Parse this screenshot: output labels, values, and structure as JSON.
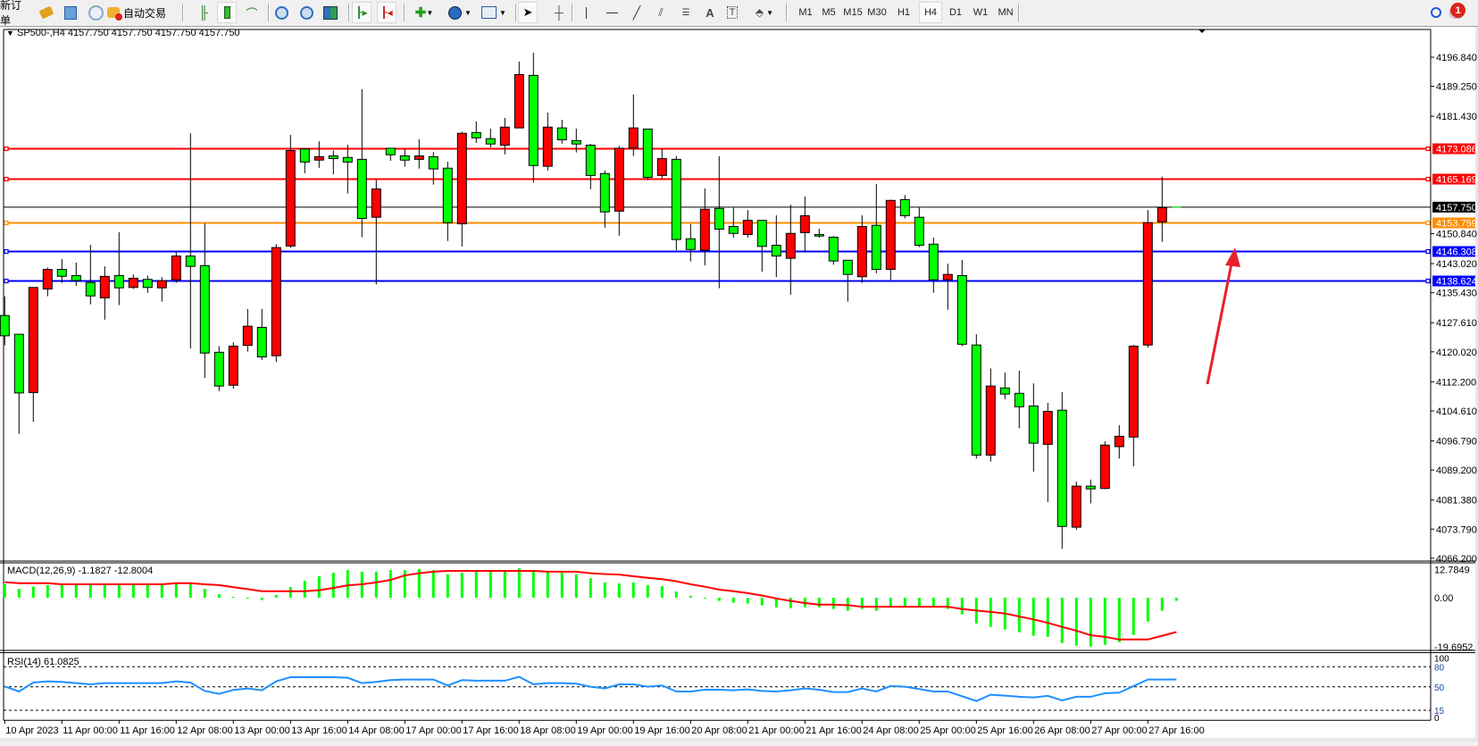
{
  "toolbar": {
    "new_order_label": "新订单",
    "auto_trading_label": "自动交易",
    "timeframes": [
      "M1",
      "M5",
      "M15",
      "M30",
      "H1",
      "H4",
      "D1",
      "W1",
      "MN"
    ],
    "active_timeframe": "H4",
    "notification_count": "1",
    "icons": [
      "new-order",
      "market-watch-icon",
      "navigator-icon",
      "signals-icon",
      "auto-trading-icon",
      "bar-chart-icon",
      "candlestick-icon",
      "line-chart-icon",
      "zoom-in-icon",
      "zoom-out-icon",
      "tile-windows-icon",
      "auto-scroll-icon",
      "chart-shift-icon",
      "add-indicator-icon",
      "periods-icon",
      "templates-icon",
      "cursor-icon",
      "crosshair-icon",
      "vertical-line-icon",
      "horizontal-line-icon",
      "trendline-icon",
      "equidistant-channel-icon",
      "fibonacci-icon",
      "text-icon",
      "text-label-icon",
      "arrows-icon",
      "search-icon",
      "notifications-icon"
    ]
  },
  "chart": {
    "header": "SP500-,H4  4157.750 4157.750 4157.750 4157.750",
    "macd_label": "MACD(12,26,9) -1.1827 -12.8004",
    "rsi_label": "RSI(14) 61.0825",
    "bull_color": "#ff0000",
    "bear_color": "#00ff00",
    "price_ticks": [
      "4196.840",
      "4189.250",
      "4181.430",
      "4150.840",
      "4143.020",
      "4135.430",
      "4127.610",
      "4120.020",
      "4112.200",
      "4104.610",
      "4096.790",
      "4089.200",
      "4081.380",
      "4073.790",
      "4066.200"
    ],
    "macd_ticks": [
      "12.7849",
      "0.00",
      "-19.6952"
    ],
    "rsi_ticks": [
      "100",
      "80",
      "50",
      "15",
      "0"
    ],
    "time_labels": [
      "10 Apr 2023",
      "11 Apr 00:00",
      "11 Apr 16:00",
      "12 Apr 08:00",
      "13 Apr 00:00",
      "13 Apr 16:00",
      "14 Apr 08:00",
      "17 Apr 00:00",
      "17 Apr 16:00",
      "18 Apr 08:00",
      "19 Apr 00:00",
      "19 Apr 16:00",
      "20 Apr 08:00",
      "21 Apr 00:00",
      "21 Apr 16:00",
      "24 Apr 08:00",
      "25 Apr 00:00",
      "25 Apr 16:00",
      "26 Apr 08:00",
      "27 Apr 00:00",
      "27 Apr 16:00"
    ],
    "hlines": [
      {
        "price": 4173.086,
        "label": "4173.086",
        "color": "#ff0000"
      },
      {
        "price": 4165.169,
        "label": "4165.169",
        "color": "#ff0000"
      },
      {
        "price": 4153.759,
        "label": "4153.759",
        "color": "#ff8c00"
      },
      {
        "price": 4146.308,
        "label": "4146.308",
        "color": "#0000ff"
      },
      {
        "price": 4138.624,
        "label": "4138.624",
        "color": "#0000ff"
      }
    ],
    "bid": {
      "price": 4157.75,
      "label": "4157.750",
      "color": "#000000"
    },
    "annotation_arrow_color": "#e8202a"
  },
  "chart_data": {
    "type": "candlestick",
    "symbol": "SP500-",
    "timeframe": "H4",
    "ylim": [
      4065.47,
      4204.06
    ],
    "ohlc": [
      [
        4129.5,
        4134.5,
        4121.7,
        4124.2
      ],
      [
        4124.6,
        4124.6,
        4098.6,
        4109.3
      ],
      [
        4109.4,
        4136.8,
        4101.8,
        4136.8
      ],
      [
        4136.4,
        4142.0,
        4134.5,
        4141.5
      ],
      [
        4141.5,
        4144.2,
        4138.0,
        4139.7
      ],
      [
        4139.9,
        4143.3,
        4137.2,
        4138.6
      ],
      [
        4138.1,
        4147.9,
        4132.4,
        4134.6
      ],
      [
        4134.1,
        4142.3,
        4128.4,
        4139.7
      ],
      [
        4139.9,
        4151.2,
        4132.2,
        4136.7
      ],
      [
        4136.8,
        4140.2,
        4136.4,
        4139.2
      ],
      [
        4138.9,
        4139.9,
        4135.4,
        4136.8
      ],
      [
        4136.7,
        4139.5,
        4133.1,
        4138.6
      ],
      [
        4138.8,
        4146.1,
        4138.0,
        4145.0
      ],
      [
        4145.0,
        4177.0,
        4120.9,
        4142.3
      ],
      [
        4142.5,
        4153.5,
        4113.2,
        4119.7
      ],
      [
        4119.9,
        4121.5,
        4109.8,
        4111.1
      ],
      [
        4111.3,
        4122.5,
        4110.4,
        4121.5
      ],
      [
        4121.7,
        4131.2,
        4120.1,
        4126.7
      ],
      [
        4126.4,
        4131.2,
        4117.9,
        4118.7
      ],
      [
        4119.0,
        4148.1,
        4117.4,
        4147.2
      ],
      [
        4147.6,
        4176.6,
        4147.1,
        4172.5
      ],
      [
        4172.9,
        4172.9,
        4166.6,
        4169.5
      ],
      [
        4170.0,
        4174.9,
        4168.0,
        4170.9
      ],
      [
        4171.1,
        4172.5,
        4166.3,
        4170.4
      ],
      [
        4170.7,
        4174.0,
        4161.3,
        4169.5
      ],
      [
        4170.2,
        4188.5,
        4149.9,
        4154.8
      ],
      [
        4155.1,
        4164.9,
        4137.6,
        4162.5
      ],
      [
        4173.1,
        4173.1,
        4169.8,
        4171.4
      ],
      [
        4171.1,
        4172.9,
        4168.3,
        4170.0
      ],
      [
        4170.2,
        4175.4,
        4167.8,
        4171.1
      ],
      [
        4170.9,
        4172.1,
        4163.6,
        4167.7
      ],
      [
        4167.9,
        4169.6,
        4148.9,
        4153.7
      ],
      [
        4153.4,
        4177.4,
        4147.5,
        4177.0
      ],
      [
        4177.2,
        4180.1,
        4174.5,
        4175.8
      ],
      [
        4175.6,
        4178.2,
        4173.3,
        4174.2
      ],
      [
        4173.9,
        4181.0,
        4171.5,
        4178.6
      ],
      [
        4178.4,
        4195.7,
        4178.4,
        4192.3
      ],
      [
        4192.1,
        4198.0,
        4164.1,
        4168.6
      ],
      [
        4168.4,
        4182.4,
        4167.3,
        4178.6
      ],
      [
        4178.4,
        4180.5,
        4174.3,
        4175.3
      ],
      [
        4175.1,
        4178.2,
        4172.0,
        4174.2
      ],
      [
        4173.9,
        4174.2,
        4162.4,
        4166.0
      ],
      [
        4166.5,
        4167.3,
        4152.4,
        4156.5
      ],
      [
        4156.7,
        4173.7,
        4150.3,
        4173.1
      ],
      [
        4173.1,
        4187.1,
        4171.1,
        4178.4
      ],
      [
        4178.1,
        4178.1,
        4164.8,
        4165.5
      ],
      [
        4166.0,
        4172.9,
        4165.3,
        4170.4
      ],
      [
        4170.2,
        4171.1,
        4146.5,
        4149.3
      ],
      [
        4149.5,
        4153.3,
        4143.6,
        4146.7
      ],
      [
        4146.5,
        4162.6,
        4142.6,
        4157.2
      ],
      [
        4157.4,
        4171.0,
        4136.6,
        4152.0
      ],
      [
        4152.7,
        4157.6,
        4149.8,
        4150.9
      ],
      [
        4150.6,
        4157.0,
        4149.8,
        4154.3
      ],
      [
        4154.3,
        4154.3,
        4140.9,
        4147.5
      ],
      [
        4147.8,
        4155.6,
        4139.5,
        4145.0
      ],
      [
        4144.4,
        4158.4,
        4134.9,
        4150.9
      ],
      [
        4151.1,
        4160.5,
        4145.9,
        4155.5
      ],
      [
        4150.6,
        4152.1,
        4149.8,
        4150.2
      ],
      [
        4149.9,
        4150.2,
        4142.7,
        4143.7
      ],
      [
        4143.9,
        4143.9,
        4133.1,
        4140.2
      ],
      [
        4139.6,
        4155.6,
        4138.0,
        4152.7
      ],
      [
        4153.0,
        4163.8,
        4140.5,
        4141.5
      ],
      [
        4141.5,
        4159.7,
        4138.8,
        4159.5
      ],
      [
        4159.7,
        4160.9,
        4154.8,
        4155.5
      ],
      [
        4155.1,
        4157.6,
        4147.3,
        4147.8
      ],
      [
        4148.1,
        4149.8,
        4135.4,
        4138.8
      ],
      [
        4138.8,
        4143.0,
        4131.0,
        4140.2
      ],
      [
        4139.9,
        4144.0,
        4121.5,
        4122.0
      ],
      [
        4121.8,
        4124.6,
        4092.2,
        4093.1
      ],
      [
        4093.1,
        4115.7,
        4091.4,
        4111.1
      ],
      [
        4110.6,
        4114.6,
        4107.7,
        4109.0
      ],
      [
        4109.2,
        4115.1,
        4100.1,
        4105.7
      ],
      [
        4105.9,
        4111.8,
        4088.8,
        4096.2
      ],
      [
        4095.9,
        4106.7,
        4080.9,
        4104.5
      ],
      [
        4104.8,
        4109.5,
        4068.7,
        4074.5
      ],
      [
        4074.3,
        4086.2,
        4073.6,
        4085.0
      ],
      [
        4085.0,
        4086.7,
        4080.5,
        4084.3
      ],
      [
        4084.4,
        4096.7,
        4084.2,
        4095.7
      ],
      [
        4095.3,
        4100.9,
        4092.2,
        4098.0
      ],
      [
        4097.8,
        4121.8,
        4090.2,
        4121.5
      ],
      [
        4121.8,
        4157.0,
        4121.1,
        4153.7
      ],
      [
        4153.9,
        4165.7,
        4148.7,
        4157.6
      ],
      [
        4157.75,
        4157.75,
        4157.75,
        4157.75
      ]
    ],
    "macd": {
      "params": "12,26,9",
      "ylim": [
        -19.6952,
        12.7849
      ],
      "histogram": [
        5.0,
        3.3,
        4.1,
        4.7,
        5.0,
        4.7,
        4.7,
        4.7,
        4.7,
        4.7,
        4.7,
        5.0,
        5.2,
        5.0,
        3.3,
        1.3,
        0.3,
        -0.1,
        -0.9,
        1.0,
        4.0,
        6.3,
        8.0,
        9.3,
        10.3,
        9.7,
        9.7,
        10.3,
        10.3,
        10.7,
        10.3,
        8.7,
        9.3,
        10.0,
        10.0,
        10.0,
        11.0,
        10.0,
        10.0,
        9.3,
        8.7,
        7.3,
        5.7,
        5.3,
        5.7,
        4.7,
        4.3,
        2.3,
        0.7,
        -0.1,
        -1.2,
        -1.9,
        -2.2,
        -2.9,
        -3.6,
        -3.9,
        -3.6,
        -3.6,
        -4.2,
        -4.9,
        -4.2,
        -4.9,
        -3.6,
        -3.6,
        -3.6,
        -3.6,
        -4.2,
        -6.2,
        -9.6,
        -10.9,
        -11.9,
        -12.9,
        -14.2,
        -14.6,
        -16.9,
        -17.9,
        -18.2,
        -17.6,
        -16.6,
        -13.9,
        -8.9,
        -4.9,
        -1.1827
      ],
      "signal": [
        5.8,
        5.4,
        5.4,
        5.4,
        5.0,
        5.0,
        5.0,
        5.0,
        5.0,
        5.0,
        5.0,
        5.0,
        5.4,
        5.4,
        5.0,
        4.7,
        3.9,
        3.2,
        2.4,
        2.4,
        2.4,
        2.4,
        2.8,
        3.6,
        4.6,
        5.0,
        5.7,
        6.6,
        8.3,
        9.1,
        9.7,
        10.0,
        10.0,
        10.0,
        10.0,
        10.0,
        10.0,
        10.0,
        9.7,
        9.7,
        9.7,
        9.1,
        8.8,
        8.6,
        8.0,
        7.4,
        6.9,
        6.1,
        5.0,
        4.1,
        3.0,
        2.4,
        1.7,
        0.8,
        -0.3,
        -1.2,
        -2.0,
        -2.6,
        -2.6,
        -2.8,
        -3.4,
        -3.4,
        -3.4,
        -3.4,
        -3.4,
        -3.4,
        -3.4,
        -4.2,
        -4.8,
        -5.3,
        -5.9,
        -7.0,
        -8.1,
        -9.4,
        -10.9,
        -12.3,
        -14.0,
        -14.6,
        -15.6,
        -15.6,
        -15.6,
        -14.2,
        -12.8004
      ],
      "histogram_color": "#00ff00",
      "signal_color": "#ff0000"
    },
    "rsi": {
      "period": 14,
      "ylim": [
        0,
        100
      ],
      "levels": [
        80,
        50,
        15
      ],
      "values": [
        50.6,
        43.0,
        56.4,
        58.2,
        57.3,
        55.5,
        53.7,
        55.5,
        55.5,
        55.5,
        55.5,
        55.5,
        58.2,
        56.4,
        43.9,
        39.5,
        45.3,
        47.5,
        44.8,
        58.2,
        64.4,
        64.4,
        64.4,
        64.4,
        63.5,
        55.5,
        57.3,
        60.0,
        60.9,
        60.9,
        60.9,
        52.0,
        60.0,
        59.1,
        59.1,
        59.1,
        64.9,
        53.7,
        55.5,
        55.5,
        54.6,
        50.2,
        47.5,
        53.7,
        53.7,
        50.2,
        52.0,
        43.0,
        43.0,
        45.7,
        45.7,
        44.8,
        46.2,
        43.9,
        43.0,
        44.8,
        47.5,
        45.7,
        42.2,
        42.2,
        47.5,
        43.0,
        51.1,
        50.2,
        46.6,
        43.0,
        43.0,
        35.9,
        28.8,
        38.2,
        36.8,
        35.1,
        34.2,
        36.4,
        29.7,
        35.1,
        35.1,
        40.4,
        41.3,
        51.1,
        60.9,
        60.9,
        61.0825
      ],
      "color": "#1e90ff"
    }
  }
}
